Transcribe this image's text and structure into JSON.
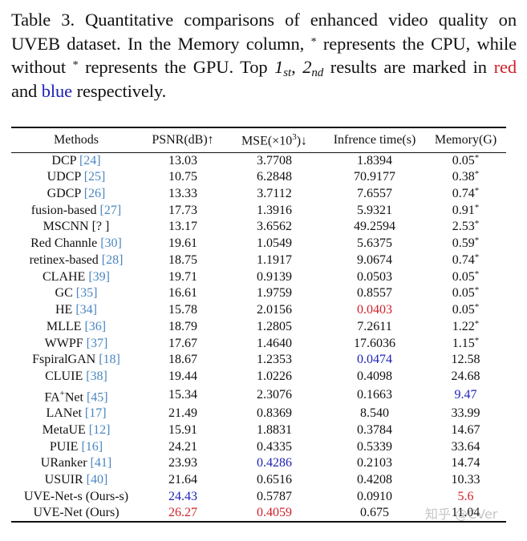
{
  "caption": {
    "label": "Table 3.",
    "text_1": "Quantitative comparisons of enhanced video quality on UVEB dataset. In the Memory column, ",
    "star": "*",
    "text_2": " represents the CPU, while without ",
    "text_3": " represents the GPU. Top ",
    "first": "1",
    "first_sub": "st",
    "comma": ", ",
    "second": "2",
    "second_sub": "nd",
    "text_4": " results are marked in ",
    "red_word": "red",
    "and": " and ",
    "blue_word": "blue",
    "text_5": " respectively."
  },
  "colors": {
    "first_place": "#d0202a",
    "second_place": "#1e22b8",
    "citation": "#4a86c0"
  },
  "table": {
    "headers": {
      "methods": "Methods",
      "psnr": "PSNR(dB)↑",
      "mse_prefix": "MSE(×10",
      "mse_sup": "3",
      "mse_suffix": ")↓",
      "time": "Infrence time(s)",
      "memory": "Memory(G)"
    },
    "rows": [
      {
        "method": "DCP ",
        "ref": "[24]",
        "psnr": "13.03",
        "mse": "3.7708",
        "time": "1.8394",
        "memory": "0.05",
        "cpu": "*"
      },
      {
        "method": "UDCP ",
        "ref": "[25]",
        "psnr": "10.75",
        "mse": "6.2848",
        "time": "70.9177",
        "memory": "0.38",
        "cpu": "*"
      },
      {
        "method": "GDCP ",
        "ref": "[26]",
        "psnr": "13.33",
        "mse": "3.7112",
        "time": "7.6557",
        "memory": "0.74",
        "cpu": "*"
      },
      {
        "method": "fusion-based ",
        "ref": "[27]",
        "psnr": "17.73",
        "mse": "1.3916",
        "time": "5.9321",
        "memory": "0.91",
        "cpu": "*"
      },
      {
        "method": "MSCNN [? ]",
        "ref": "",
        "psnr": "13.17",
        "mse": "3.6562",
        "time": "49.2594",
        "memory": "2.53",
        "cpu": "*"
      },
      {
        "method": "Red Channle ",
        "ref": "[30]",
        "psnr": "19.61",
        "mse": "1.0549",
        "time": "5.6375",
        "memory": "0.59",
        "cpu": "*"
      },
      {
        "method": "retinex-based ",
        "ref": "[28]",
        "psnr": "18.75",
        "mse": "1.1917",
        "time": "9.0674",
        "memory": "0.74",
        "cpu": "*"
      },
      {
        "method": "CLAHE ",
        "ref": "[39]",
        "psnr": "19.71",
        "mse": "0.9139",
        "time": "0.0503",
        "memory": "0.05",
        "cpu": "*"
      },
      {
        "method": "GC ",
        "ref": "[35]",
        "psnr": "16.61",
        "mse": "1.9759",
        "time": "0.8557",
        "memory": "0.05",
        "cpu": "*"
      },
      {
        "method": "HE ",
        "ref": "[34]",
        "psnr": "15.78",
        "mse": "2.0156",
        "time": "0.0403",
        "memory": "0.05",
        "cpu": "*"
      },
      {
        "method": "MLLE ",
        "ref": "[36]",
        "psnr": "18.79",
        "mse": "1.2805",
        "time": "7.2611",
        "memory": "1.22",
        "cpu": "*"
      },
      {
        "method": "WWPF ",
        "ref": "[37]",
        "psnr": "17.67",
        "mse": "1.4640",
        "time": "17.6036",
        "memory": "1.15",
        "cpu": "*"
      },
      {
        "method": "FspiralGAN ",
        "ref": "[18]",
        "psnr": "18.67",
        "mse": "1.2353",
        "time": "0.0474",
        "memory": "12.58",
        "cpu": ""
      },
      {
        "method": "CLUIE ",
        "ref": "[38]",
        "psnr": "19.44",
        "mse": "1.0226",
        "time": "0.4098",
        "memory": "24.68",
        "cpu": ""
      },
      {
        "method_prefix": "FA",
        "method_sup": "+",
        "method": "Net ",
        "ref": "[45]",
        "psnr": "15.34",
        "mse": "2.3076",
        "time": "0.1663",
        "memory": "9.47",
        "cpu": ""
      },
      {
        "method": "LANet ",
        "ref": "[17]",
        "psnr": "21.49",
        "mse": "0.8369",
        "time": "8.540",
        "memory": "33.99",
        "cpu": ""
      },
      {
        "method": "MetaUE ",
        "ref": "[12]",
        "psnr": "15.91",
        "mse": "1.8831",
        "time": "0.3784",
        "memory": "14.67",
        "cpu": ""
      },
      {
        "method": "PUIE ",
        "ref": "[16]",
        "psnr": "24.21",
        "mse": "0.4335",
        "time": "0.5339",
        "memory": "33.64",
        "cpu": ""
      },
      {
        "method": "URanker ",
        "ref": "[41]",
        "psnr": "23.93",
        "mse": "0.4286",
        "time": "0.2103",
        "memory": "14.74",
        "cpu": ""
      },
      {
        "method": "USUIR ",
        "ref": "[40]",
        "psnr": "21.64",
        "mse": "0.6516",
        "time": "0.4208",
        "memory": "10.33",
        "cpu": ""
      },
      {
        "method": "UVE-Net-s (Ours-s)",
        "ref": "",
        "psnr": "24.43",
        "mse": "0.5787",
        "time": "0.0910",
        "memory": "5.6",
        "cpu": ""
      },
      {
        "method": "UVE-Net (Ours)",
        "ref": "",
        "psnr": "26.27",
        "mse": "0.4059",
        "time": "0.675",
        "memory": "11.04",
        "cpu": ""
      }
    ]
  },
  "watermark": "知乎 @CVer"
}
